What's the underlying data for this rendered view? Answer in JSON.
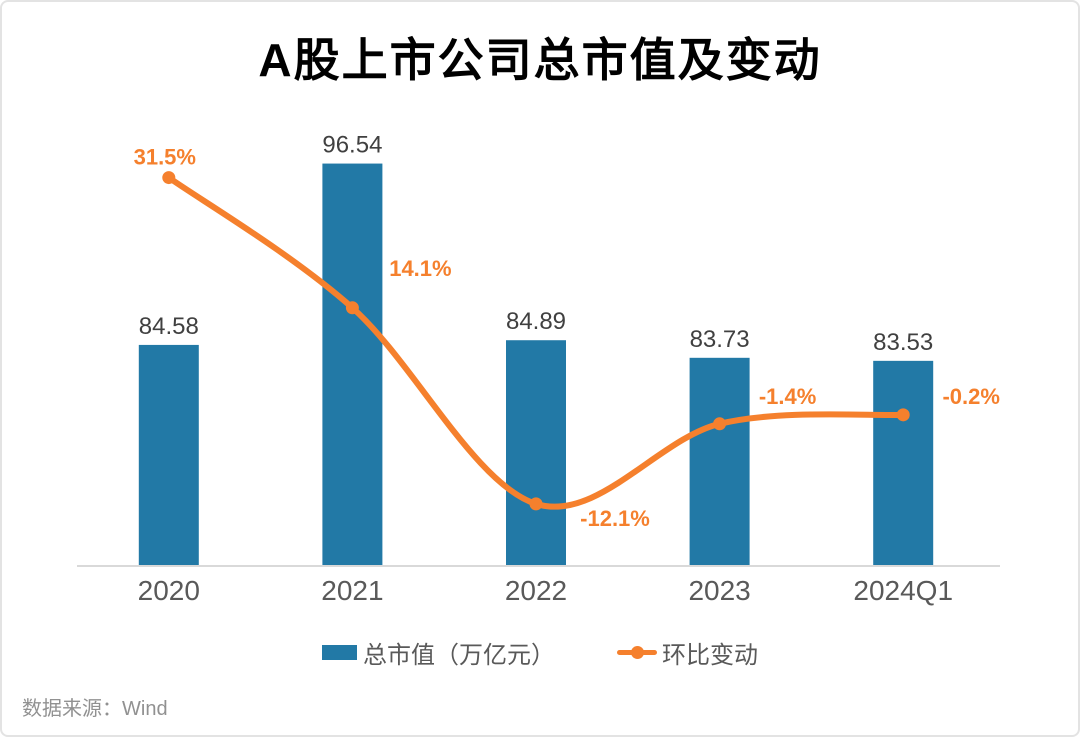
{
  "page": {
    "title": "A股上市公司总市值及变动",
    "source": "数据来源：Wind"
  },
  "legend": {
    "bar_label": "总市值（万亿元）",
    "line_label": "环比变动"
  },
  "colors": {
    "bar": "#2279a6",
    "line": "#f5802d",
    "bar_value_label": "#404040",
    "axis_label": "#595959",
    "legend_text": "#595959",
    "source_text": "#919191",
    "axis_line": "#d9d9d9",
    "title": "#000000"
  },
  "chart_data": {
    "type": "bar+line",
    "title": "A股上市公司总市值及变动",
    "categories": [
      "2020",
      "2021",
      "2022",
      "2023",
      "2024Q1"
    ],
    "series": [
      {
        "name": "总市值（万亿元）",
        "type": "bar",
        "values": [
          84.58,
          96.54,
          84.89,
          83.73,
          83.53
        ],
        "labels": [
          "84.58",
          "96.54",
          "84.89",
          "83.73",
          "83.53"
        ]
      },
      {
        "name": "环比变动",
        "type": "line",
        "values": [
          31.5,
          14.1,
          -12.1,
          -1.4,
          -0.2
        ],
        "labels": [
          "31.5%",
          "14.1%",
          "-12.1%",
          "-1.4%",
          "-0.2%"
        ]
      }
    ],
    "xlabel": "",
    "ylabel": "",
    "ylim": [
      70,
      100.6
    ],
    "y2lim": [
      -20.4,
      41.6
    ],
    "grid": false,
    "y_axis_visible": false,
    "legend_position": "bottom"
  }
}
